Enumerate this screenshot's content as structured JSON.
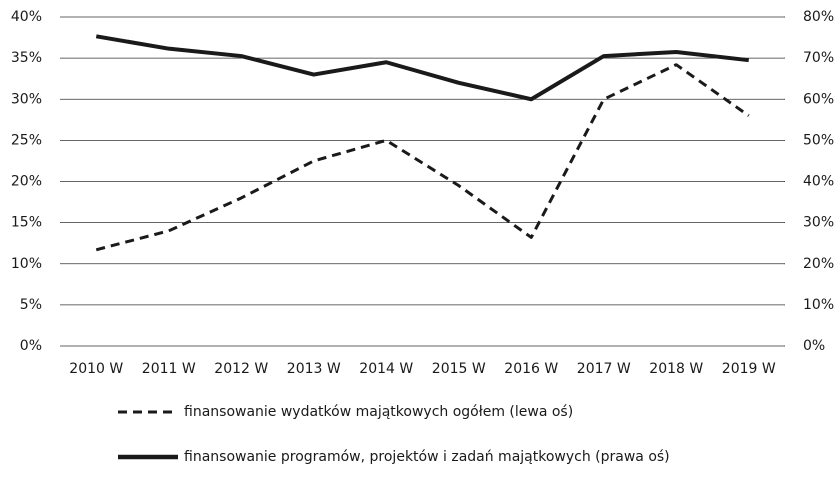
{
  "chart_data": {
    "type": "line",
    "categories": [
      "2010 W",
      "2011 W",
      "2012 W",
      "2013 W",
      "2014 W",
      "2015 W",
      "2016 W",
      "2017 W",
      "2018 W",
      "2019 W"
    ],
    "series": [
      {
        "name": "finansowanie wydatków majątkowych ogółem (lewa oś)",
        "color": "#1a1a1a",
        "dash": true,
        "values": [
          11.7,
          14,
          18,
          22.5,
          25,
          19.5,
          13.2,
          30,
          34.2,
          28
        ]
      },
      {
        "name": "finansowanie programów, projektów i zadań majątkowych (prawa oś)",
        "color": "#1a1a1a",
        "axis": "y2",
        "values": [
          75.3,
          72.3,
          70.5,
          66,
          69,
          64,
          60,
          70.5,
          71.5,
          69.5
        ]
      }
    ],
    "ylim": [
      0,
      40
    ],
    "yticks": [
      {
        "value": 0,
        "label": "0%"
      },
      {
        "value": 5,
        "label": "5%"
      },
      {
        "value": 10,
        "label": "10%"
      },
      {
        "value": 15,
        "label": "15%"
      },
      {
        "value": 20,
        "label": "20%"
      },
      {
        "value": 25,
        "label": "25%"
      },
      {
        "value": 30,
        "label": "30%"
      },
      {
        "value": 35,
        "label": "35%"
      },
      {
        "value": 40,
        "label": "40%"
      }
    ],
    "y2lim": [
      0,
      80
    ],
    "y2ticks": [
      {
        "value": 0,
        "label": "0%"
      },
      {
        "value": 10,
        "label": "10%"
      },
      {
        "value": 20,
        "label": "20%"
      },
      {
        "value": 30,
        "label": "30%"
      },
      {
        "value": 40,
        "label": "40%"
      },
      {
        "value": 50,
        "label": "50%"
      },
      {
        "value": 60,
        "label": "60%"
      },
      {
        "value": 70,
        "label": "70%"
      },
      {
        "value": 80,
        "label": "80%"
      }
    ],
    "grid": true
  }
}
